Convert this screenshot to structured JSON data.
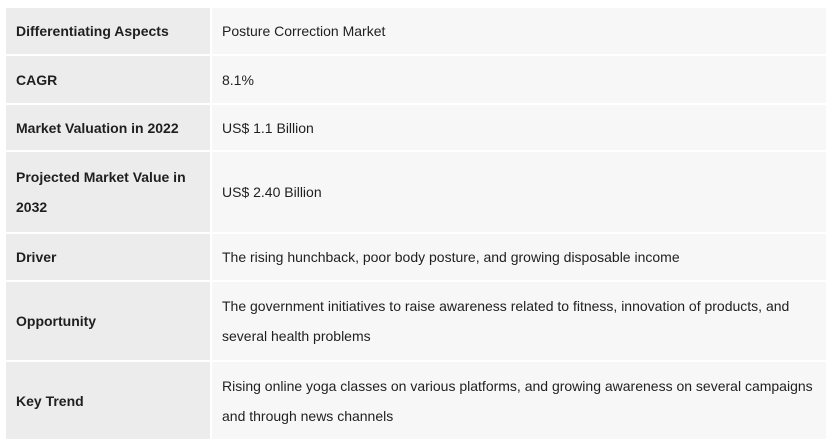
{
  "table": {
    "rows": [
      {
        "label": "Differentiating Aspects",
        "value": "Posture Correction Market"
      },
      {
        "label": "CAGR",
        "value": "8.1%"
      },
      {
        "label": "Market Valuation in 2022",
        "value": "US$ 1.1 Billion"
      },
      {
        "label": "Projected Market Value in 2032",
        "value": "US$ 2.40 Billion"
      },
      {
        "label": "Driver",
        "value": "The rising hunchback, poor body posture, and growing disposable income"
      },
      {
        "label": "Opportunity",
        "value": "The government initiatives to raise awareness related to fitness, innovation of products, and several health problems"
      },
      {
        "label": "Key Trend",
        "value": "Rising online yoga classes on various platforms, and growing awareness on several campaigns and through news channels"
      }
    ]
  }
}
